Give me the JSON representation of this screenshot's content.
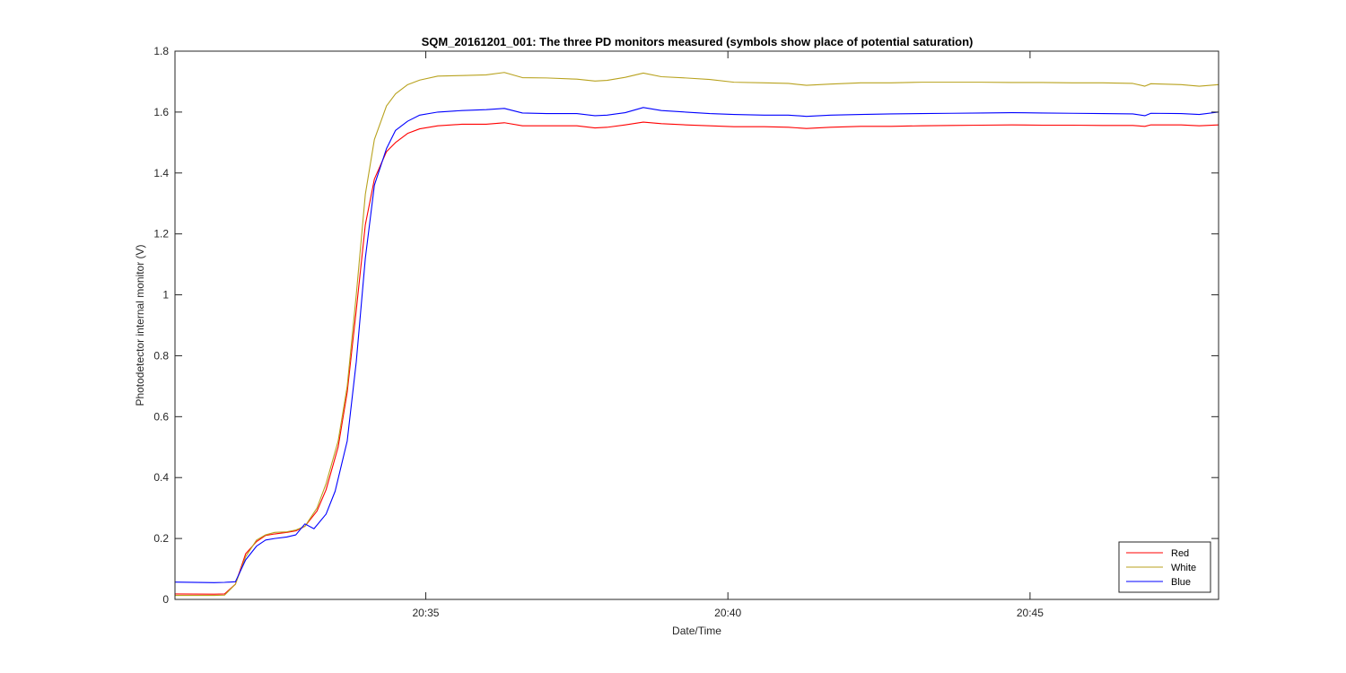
{
  "chart_data": {
    "type": "line",
    "title": "SQM_20161201_001: The three PD monitors measured (symbols show place of potential saturation)",
    "xlabel": "Date/Time",
    "ylabel": "Photodetector internal monitor (V)",
    "x_unit": "minutes after 20:30",
    "xlim": [
      0.85,
      18.12
    ],
    "ylim": [
      0,
      1.8
    ],
    "xticks": [
      5,
      10,
      15
    ],
    "xtick_labels": [
      "20:35",
      "20:40",
      "20:45"
    ],
    "yticks": [
      0,
      0.2,
      0.4,
      0.6,
      0.8,
      1,
      1.2,
      1.4,
      1.6,
      1.8
    ],
    "ytick_labels": [
      "0",
      "0.2",
      "0.4",
      "0.6",
      "0.8",
      "1",
      "1.2",
      "1.4",
      "1.6",
      "1.8"
    ],
    "grid": false,
    "legend_position": "bottom-right",
    "series": [
      {
        "name": "Red",
        "color": "#ff0000",
        "points": [
          [
            0.85,
            0.018
          ],
          [
            1.5,
            0.017
          ],
          [
            1.67,
            0.018
          ],
          [
            1.85,
            0.05
          ],
          [
            2.02,
            0.15
          ],
          [
            2.2,
            0.19
          ],
          [
            2.35,
            0.21
          ],
          [
            2.5,
            0.215
          ],
          [
            2.7,
            0.22
          ],
          [
            2.85,
            0.225
          ],
          [
            3.0,
            0.24
          ],
          [
            3.2,
            0.29
          ],
          [
            3.35,
            0.36
          ],
          [
            3.55,
            0.5
          ],
          [
            3.7,
            0.68
          ],
          [
            3.85,
            0.95
          ],
          [
            4.0,
            1.23
          ],
          [
            4.15,
            1.38
          ],
          [
            4.35,
            1.47
          ],
          [
            4.5,
            1.5
          ],
          [
            4.7,
            1.53
          ],
          [
            4.9,
            1.545
          ],
          [
            5.2,
            1.555
          ],
          [
            5.6,
            1.56
          ],
          [
            6.0,
            1.56
          ],
          [
            6.3,
            1.565
          ],
          [
            6.6,
            1.555
          ],
          [
            7.0,
            1.555
          ],
          [
            7.5,
            1.555
          ],
          [
            7.8,
            1.548
          ],
          [
            8.0,
            1.55
          ],
          [
            8.3,
            1.558
          ],
          [
            8.6,
            1.567
          ],
          [
            8.9,
            1.562
          ],
          [
            9.3,
            1.558
          ],
          [
            9.7,
            1.555
          ],
          [
            10.1,
            1.552
          ],
          [
            10.6,
            1.552
          ],
          [
            11.0,
            1.55
          ],
          [
            11.3,
            1.546
          ],
          [
            11.7,
            1.55
          ],
          [
            12.2,
            1.553
          ],
          [
            12.7,
            1.553
          ],
          [
            13.2,
            1.555
          ],
          [
            13.7,
            1.556
          ],
          [
            14.2,
            1.557
          ],
          [
            14.7,
            1.558
          ],
          [
            15.2,
            1.557
          ],
          [
            15.7,
            1.557
          ],
          [
            16.2,
            1.556
          ],
          [
            16.7,
            1.556
          ],
          [
            16.9,
            1.553
          ],
          [
            17.0,
            1.558
          ],
          [
            17.5,
            1.558
          ],
          [
            17.8,
            1.555
          ],
          [
            18.12,
            1.558
          ]
        ]
      },
      {
        "name": "White",
        "color": "#b8a21e",
        "points": [
          [
            0.85,
            0.013
          ],
          [
            1.5,
            0.013
          ],
          [
            1.67,
            0.014
          ],
          [
            1.85,
            0.05
          ],
          [
            2.02,
            0.14
          ],
          [
            2.2,
            0.195
          ],
          [
            2.35,
            0.212
          ],
          [
            2.5,
            0.22
          ],
          [
            2.7,
            0.222
          ],
          [
            2.85,
            0.228
          ],
          [
            3.0,
            0.24
          ],
          [
            3.2,
            0.3
          ],
          [
            3.35,
            0.38
          ],
          [
            3.55,
            0.52
          ],
          [
            3.7,
            0.7
          ],
          [
            3.85,
            1.0
          ],
          [
            4.0,
            1.33
          ],
          [
            4.15,
            1.51
          ],
          [
            4.35,
            1.62
          ],
          [
            4.5,
            1.66
          ],
          [
            4.7,
            1.69
          ],
          [
            4.9,
            1.705
          ],
          [
            5.2,
            1.718
          ],
          [
            5.6,
            1.72
          ],
          [
            6.0,
            1.722
          ],
          [
            6.3,
            1.73
          ],
          [
            6.6,
            1.713
          ],
          [
            7.0,
            1.712
          ],
          [
            7.5,
            1.708
          ],
          [
            7.8,
            1.702
          ],
          [
            8.0,
            1.704
          ],
          [
            8.3,
            1.714
          ],
          [
            8.6,
            1.728
          ],
          [
            8.9,
            1.716
          ],
          [
            9.3,
            1.712
          ],
          [
            9.7,
            1.707
          ],
          [
            10.1,
            1.698
          ],
          [
            10.6,
            1.696
          ],
          [
            11.0,
            1.694
          ],
          [
            11.3,
            1.688
          ],
          [
            11.7,
            1.692
          ],
          [
            12.2,
            1.696
          ],
          [
            12.7,
            1.696
          ],
          [
            13.2,
            1.698
          ],
          [
            13.7,
            1.698
          ],
          [
            14.2,
            1.698
          ],
          [
            14.7,
            1.697
          ],
          [
            15.2,
            1.697
          ],
          [
            15.7,
            1.696
          ],
          [
            16.2,
            1.696
          ],
          [
            16.7,
            1.694
          ],
          [
            16.9,
            1.685
          ],
          [
            17.0,
            1.693
          ],
          [
            17.5,
            1.69
          ],
          [
            17.8,
            1.685
          ],
          [
            18.12,
            1.69
          ]
        ]
      },
      {
        "name": "Blue",
        "color": "#0000ff",
        "points": [
          [
            0.85,
            0.057
          ],
          [
            1.5,
            0.055
          ],
          [
            1.67,
            0.056
          ],
          [
            1.85,
            0.058
          ],
          [
            2.02,
            0.13
          ],
          [
            2.2,
            0.175
          ],
          [
            2.35,
            0.195
          ],
          [
            2.5,
            0.2
          ],
          [
            2.7,
            0.205
          ],
          [
            2.85,
            0.212
          ],
          [
            3.0,
            0.248
          ],
          [
            3.15,
            0.232
          ],
          [
            3.35,
            0.28
          ],
          [
            3.5,
            0.355
          ],
          [
            3.7,
            0.52
          ],
          [
            3.85,
            0.78
          ],
          [
            4.0,
            1.12
          ],
          [
            4.15,
            1.36
          ],
          [
            4.35,
            1.48
          ],
          [
            4.5,
            1.54
          ],
          [
            4.7,
            1.57
          ],
          [
            4.9,
            1.59
          ],
          [
            5.2,
            1.6
          ],
          [
            5.6,
            1.605
          ],
          [
            6.0,
            1.608
          ],
          [
            6.3,
            1.612
          ],
          [
            6.6,
            1.597
          ],
          [
            7.0,
            1.595
          ],
          [
            7.5,
            1.595
          ],
          [
            7.8,
            1.588
          ],
          [
            8.0,
            1.59
          ],
          [
            8.3,
            1.598
          ],
          [
            8.6,
            1.615
          ],
          [
            8.9,
            1.605
          ],
          [
            9.3,
            1.6
          ],
          [
            9.7,
            1.595
          ],
          [
            10.1,
            1.592
          ],
          [
            10.6,
            1.59
          ],
          [
            11.0,
            1.59
          ],
          [
            11.3,
            1.586
          ],
          [
            11.7,
            1.59
          ],
          [
            12.2,
            1.592
          ],
          [
            12.7,
            1.594
          ],
          [
            13.2,
            1.595
          ],
          [
            13.7,
            1.596
          ],
          [
            14.2,
            1.597
          ],
          [
            14.7,
            1.598
          ],
          [
            15.2,
            1.597
          ],
          [
            15.7,
            1.596
          ],
          [
            16.2,
            1.595
          ],
          [
            16.7,
            1.594
          ],
          [
            16.9,
            1.588
          ],
          [
            17.0,
            1.596
          ],
          [
            17.5,
            1.595
          ],
          [
            17.8,
            1.592
          ],
          [
            18.12,
            1.6
          ]
        ]
      }
    ]
  }
}
